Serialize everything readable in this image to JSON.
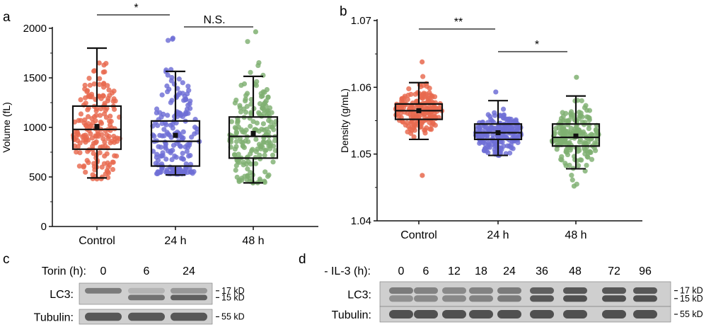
{
  "colors": {
    "control": "#e8694e",
    "h24": "#6e6ed6",
    "h48": "#7fb071",
    "box": "#111111"
  },
  "panels": {
    "a": "a",
    "b": "b",
    "c": "c",
    "d": "d"
  },
  "chart_data": [
    {
      "type": "box",
      "panel": "a",
      "ylabel": "Volume (fL)",
      "ylim": [
        0,
        2000
      ],
      "yticks": [
        0,
        500,
        1000,
        1500,
        2000
      ],
      "categories": [
        "Control",
        "24 h",
        "48 h"
      ],
      "boxes": [
        {
          "category": "Control",
          "whisker_low": 490,
          "q1": 780,
          "median": 980,
          "mean": 1010,
          "q3": 1215,
          "whisker_high": 1800,
          "points_low": 480,
          "points_high": 1650
        },
        {
          "category": "24 h",
          "whisker_low": 520,
          "q1": 610,
          "median": 860,
          "mean": 920,
          "q3": 1065,
          "whisker_high": 1565,
          "points_low": 530,
          "points_high": 1900
        },
        {
          "category": "48 h",
          "whisker_low": 440,
          "q1": 690,
          "median": 910,
          "mean": 940,
          "q3": 1105,
          "whisker_high": 1515,
          "points_low": 440,
          "points_high": 1965
        }
      ],
      "annotations": [
        {
          "from": "Control",
          "to": "24 h",
          "label": "*"
        },
        {
          "from": "24 h",
          "to": "48 h",
          "label": "N.S."
        }
      ]
    },
    {
      "type": "box",
      "panel": "b",
      "ylabel": "Density (g/mL)",
      "ylim": [
        1.04,
        1.07
      ],
      "yticks": [
        1.04,
        1.05,
        1.06,
        1.07
      ],
      "categories": [
        "Control",
        "24 h",
        "48 h"
      ],
      "boxes": [
        {
          "category": "Control",
          "whisker_low": 1.0522,
          "q1": 1.0552,
          "median": 1.0565,
          "mean": 1.0565,
          "q3": 1.0575,
          "whisker_high": 1.0607,
          "points_low": 1.0468,
          "points_high": 1.0638
        },
        {
          "category": "24 h",
          "whisker_low": 1.0498,
          "q1": 1.0522,
          "median": 1.0532,
          "mean": 1.0532,
          "q3": 1.0545,
          "whisker_high": 1.058,
          "points_low": 1.0498,
          "points_high": 1.0593
        },
        {
          "category": "48 h",
          "whisker_low": 1.0478,
          "q1": 1.0512,
          "median": 1.0525,
          "mean": 1.0527,
          "q3": 1.0545,
          "whisker_high": 1.0587,
          "points_low": 1.0452,
          "points_high": 1.0615
        }
      ],
      "annotations": [
        {
          "from": "Control",
          "to": "24 h",
          "label": "**"
        },
        {
          "from": "24 h",
          "to": "48 h",
          "label": "*"
        }
      ]
    }
  ],
  "blot_c": {
    "condition_label": "Torin (h):",
    "lanes": [
      "0",
      "6",
      "24"
    ],
    "rows": [
      {
        "label": "LC3:",
        "markers": [
          "17 kD",
          "15 kD"
        ],
        "bands": [
          [
            0.55,
            0.0
          ],
          [
            0.15,
            0.6
          ],
          [
            0.35,
            0.75
          ]
        ]
      },
      {
        "label": "Tubulin:",
        "markers": [
          "55 kD"
        ],
        "bands": [
          [
            0.8
          ],
          [
            0.8
          ],
          [
            0.8
          ]
        ]
      }
    ]
  },
  "blot_d": {
    "condition_label": "- IL-3 (h):",
    "lanes": [
      "0",
      "6",
      "12",
      "18",
      "24",
      "36",
      "48",
      "72",
      "96"
    ],
    "rows": [
      {
        "label": "LC3:",
        "markers": [
          "17 kD",
          "15 kD"
        ],
        "bands": [
          [
            0.55,
            0.4
          ],
          [
            0.5,
            0.45
          ],
          [
            0.45,
            0.45
          ],
          [
            0.5,
            0.5
          ],
          [
            0.55,
            0.55
          ],
          [
            0.75,
            0.8
          ],
          [
            0.8,
            0.85
          ],
          [
            0.8,
            0.85
          ],
          [
            0.8,
            0.85
          ]
        ]
      },
      {
        "label": "Tubulin:",
        "markers": [
          "55 kD"
        ],
        "bands": [
          [
            0.85
          ],
          [
            0.85
          ],
          [
            0.85
          ],
          [
            0.85
          ],
          [
            0.85
          ],
          [
            0.85
          ],
          [
            0.85
          ],
          [
            0.85
          ],
          [
            0.85
          ]
        ]
      }
    ]
  }
}
